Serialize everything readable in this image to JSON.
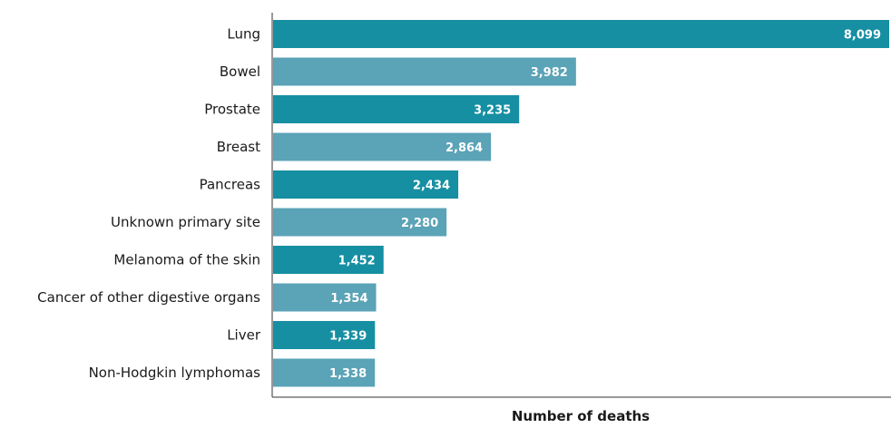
{
  "chart_data": {
    "type": "bar",
    "orientation": "horizontal",
    "categories": [
      "Lung",
      "Bowel",
      "Prostate",
      "Breast",
      "Pancreas",
      "Unknown primary site",
      "Melanoma of the skin",
      "Cancer of other digestive organs",
      "Liver",
      "Non-Hodgkin lymphomas"
    ],
    "values": [
      8099,
      3982,
      3235,
      2864,
      2434,
      2280,
      1452,
      1354,
      1339,
      1338
    ],
    "value_labels": [
      "8,099",
      "3,982",
      "3,235",
      "2,864",
      "2,434",
      "2,280",
      "1,452",
      "1,354",
      "1,339",
      "1,338"
    ],
    "title": "",
    "xlabel": "Number of deaths",
    "ylabel": "",
    "xlim": [
      0,
      8099
    ],
    "grid": false,
    "colors": {
      "primary": "#168FA2",
      "secondary": "#5BA3B7",
      "axis": "#333333",
      "value_label": "#ffffff"
    }
  }
}
